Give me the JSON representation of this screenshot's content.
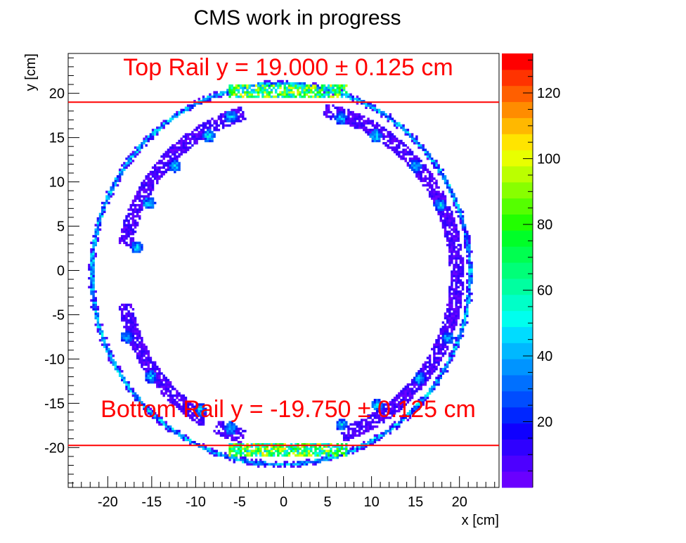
{
  "chart_data": {
    "type": "heatmap",
    "title": "CMS work in progress",
    "xlabel": "x [cm]",
    "ylabel": "y [cm]",
    "xlim": [
      -24.5,
      24.5
    ],
    "ylim": [
      -24.5,
      24.5
    ],
    "x_ticks": [
      -20,
      -15,
      -10,
      -5,
      0,
      5,
      10,
      15,
      20
    ],
    "y_ticks": [
      -20,
      -15,
      -10,
      -5,
      0,
      5,
      10,
      15,
      20
    ],
    "z_range": [
      0,
      132
    ],
    "z_ticks": [
      20,
      40,
      60,
      80,
      100,
      120
    ],
    "palette": [
      "#6a00ff",
      "#4d00ff",
      "#2f00ff",
      "#0f00ff",
      "#0026ff",
      "#004dff",
      "#0070ff",
      "#0094ff",
      "#00b8ff",
      "#00dcff",
      "#00ffee",
      "#00ffc8",
      "#00ffa0",
      "#00ff78",
      "#00ff50",
      "#00ff28",
      "#22ff00",
      "#55ff00",
      "#88ff00",
      "#bbff00",
      "#e8ff00",
      "#ffe400",
      "#ffb800",
      "#ff8c00",
      "#ff5f00",
      "#ff3300",
      "#ff0000"
    ],
    "structures": {
      "outer_ring": {
        "center": [
          -0.3,
          -0.4
        ],
        "radius": 21.5,
        "typical_z": 35
      },
      "inner_ring": {
        "center": [
          0.7,
          -0.5
        ],
        "radius": 19.0,
        "width": 1.6,
        "typical_z": 12,
        "gaps_deg": [
          [
            78,
            106
          ],
          [
            170,
            190
          ],
          [
            240,
            244
          ],
          [
            254,
            288
          ]
        ]
      },
      "hot_spots": [
        {
          "x": -16.7,
          "y": 2.6,
          "z": 45
        },
        {
          "x": -15.3,
          "y": 7.6,
          "z": 50
        },
        {
          "x": -12.4,
          "y": 11.8,
          "z": 45
        },
        {
          "x": -8.5,
          "y": 15.2,
          "z": 50
        },
        {
          "x": -6.0,
          "y": 17.4,
          "z": 45
        },
        {
          "x": 6.5,
          "y": 17.2,
          "z": 45
        },
        {
          "x": 10.5,
          "y": 15.2,
          "z": 50
        },
        {
          "x": 15.0,
          "y": 11.8,
          "z": 45
        },
        {
          "x": 17.8,
          "y": 7.4,
          "z": 45
        },
        {
          "x": 18.7,
          "y": -7.6,
          "z": 45
        },
        {
          "x": 15.5,
          "y": -12.2,
          "z": 45
        },
        {
          "x": 10.7,
          "y": -15.2,
          "z": 50
        },
        {
          "x": 6.6,
          "y": -17.4,
          "z": 45
        },
        {
          "x": -6.0,
          "y": -17.8,
          "z": 45
        },
        {
          "x": -9.5,
          "y": -15.7,
          "z": 45
        },
        {
          "x": -15.1,
          "y": -12.0,
          "z": 45
        },
        {
          "x": -17.8,
          "y": -7.5,
          "z": 45
        }
      ],
      "top_band": {
        "y": [
          19.5,
          20.9
        ],
        "x": [
          -6.2,
          7.2
        ],
        "typical_z": 80
      },
      "bottom_band": {
        "y": [
          -20.9,
          -19.5
        ],
        "x": [
          -6.2,
          7.2
        ],
        "typical_z": 80
      }
    },
    "rails": [
      {
        "name": "top",
        "y": 19.0,
        "label": "Top Rail y = 19.000 ± 0.125 cm"
      },
      {
        "name": "bottom",
        "y": -19.75,
        "label": "Bottom Rail y = -19.750 ± 0.125 cm"
      }
    ],
    "grid": false,
    "legend": "colorbar right"
  }
}
